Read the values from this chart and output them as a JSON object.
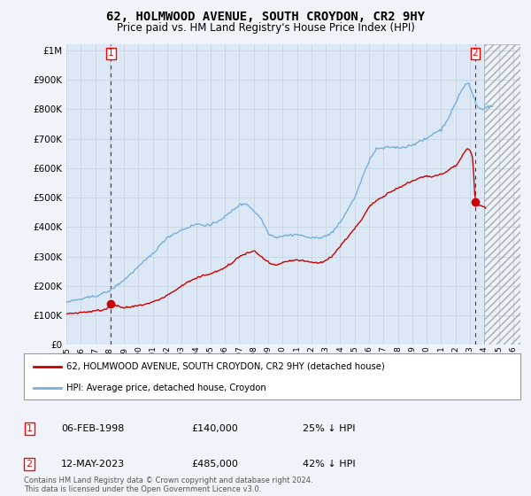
{
  "title": "62, HOLMWOOD AVENUE, SOUTH CROYDON, CR2 9HY",
  "subtitle": "Price paid vs. HM Land Registry's House Price Index (HPI)",
  "ytick_values": [
    0,
    100000,
    200000,
    300000,
    400000,
    500000,
    600000,
    700000,
    800000,
    900000,
    1000000
  ],
  "ylim": [
    0,
    1020000
  ],
  "xlim_start": 1995.0,
  "xlim_end": 2026.5,
  "hatch_start": 2024.0,
  "grid_color": "#c8d4e0",
  "background_color": "#f0f4fa",
  "plot_bg_color": "#dce8f5",
  "hpi_color": "#7ab0d8",
  "price_color": "#cc0000",
  "dashed_color": "#cc0000",
  "marker1_x": 1998.09,
  "marker1_y": 140000,
  "marker2_x": 2023.36,
  "marker2_y": 485000,
  "legend_line1": "62, HOLMWOOD AVENUE, SOUTH CROYDON, CR2 9HY (detached house)",
  "legend_line2": "HPI: Average price, detached house, Croydon",
  "footnote": "Contains HM Land Registry data © Crown copyright and database right 2024.\nThis data is licensed under the Open Government Licence v3.0."
}
